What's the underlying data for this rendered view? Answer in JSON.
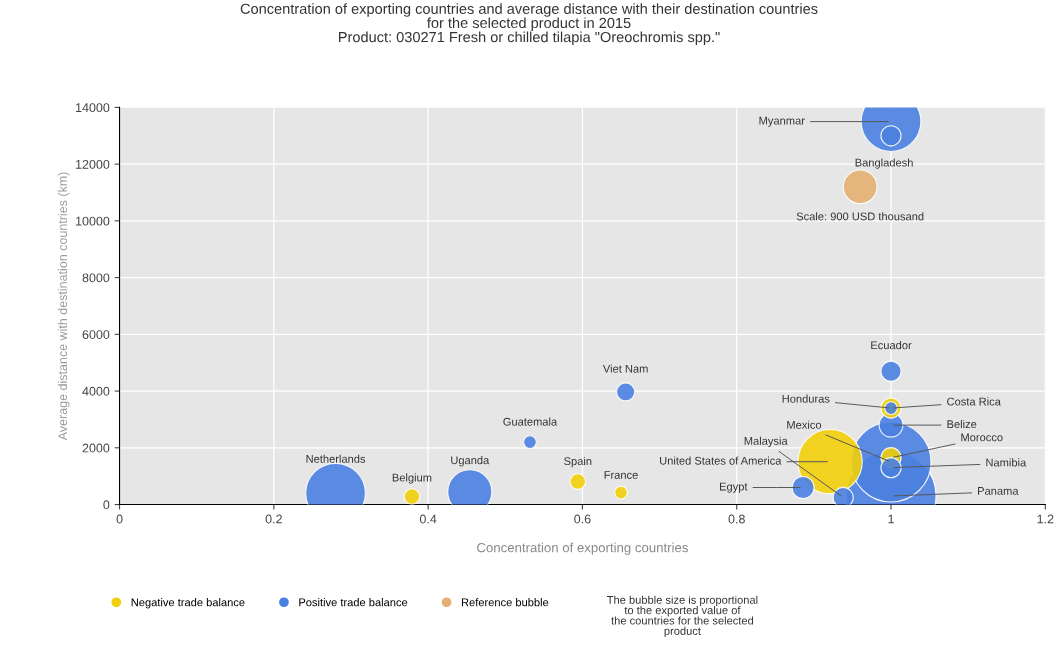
{
  "chart_data": {
    "type": "bubble",
    "title": "Concentration of exporting countries and average distance with their destination countries\nfor the selected product in 2015\nProduct: 030271 Fresh or chilled tilapia \"Oreochromis spp.\"",
    "xlabel": "Concentration of exporting countries",
    "ylabel": "Average distance with destination countries (km)",
    "xlim": [
      0,
      1.2
    ],
    "xticks": [
      0,
      0.2,
      0.4,
      0.6,
      0.8,
      1,
      1.2
    ],
    "ylim": [
      0,
      14000
    ],
    "yticks": [
      0,
      2000,
      4000,
      6000,
      8000,
      10000,
      12000,
      14000
    ],
    "grid": true,
    "legend": "bottom",
    "series": [
      {
        "name": "Negative trade balance",
        "color": "#f2cf0a",
        "x": [
          0.379,
          0.594,
          0.65,
          0.921,
          1.0,
          1.0
        ],
        "values": [
          280,
          810,
          420,
          1510,
          1650,
          3400
        ],
        "sizes": [
          0.03,
          0.03,
          0.02,
          0.51,
          0.05,
          0.05
        ]
      },
      {
        "name": "Positive trade balance",
        "color": "#4a80e0",
        "x": [
          0.28,
          0.454,
          0.532,
          0.656,
          0.886,
          0.938,
          1.0,
          1.0,
          1.0,
          1.0,
          1.0,
          1.0,
          1.0,
          1.0
        ],
        "values": [
          400,
          450,
          2200,
          3970,
          600,
          250,
          300,
          1500,
          1300,
          2800,
          4700,
          13500,
          13000,
          3400
        ],
        "sizes": [
          0.44,
          0.24,
          0.02,
          0.04,
          0.06,
          0.05,
          1,
          0.79,
          0.05,
          0.07,
          0.05,
          0.44,
          0.05,
          0.02
        ]
      },
      {
        "name": "Reference bubble",
        "color": "#e3b072",
        "x": [
          0.96
        ],
        "values": [
          11200
        ],
        "sizes": [
          0.14
        ]
      }
    ],
    "annotations": [
      {
        "text": "Myanmar",
        "x": 1.0,
        "y": 13500
      },
      {
        "text": "Bangladesh",
        "x": 1.0,
        "y": 13000
      },
      {
        "text": "Ecuador",
        "x": 1.0,
        "y": 4700
      },
      {
        "text": "Honduras",
        "x": 1.0,
        "y": 3400
      },
      {
        "text": "Costa Rica",
        "x": 1.0,
        "y": 3400
      },
      {
        "text": "Belize",
        "x": 1.0,
        "y": 2800
      },
      {
        "text": "Mexico",
        "x": 1.0,
        "y": 1500
      },
      {
        "text": "Morocco",
        "x": 1.0,
        "y": 1650
      },
      {
        "text": "Malaysia",
        "x": 0.938,
        "y": 250
      },
      {
        "text": "United States of America",
        "x": 0.921,
        "y": 1510
      },
      {
        "text": "Namibia",
        "x": 1.0,
        "y": 1300
      },
      {
        "text": "Egypt",
        "x": 0.886,
        "y": 600
      },
      {
        "text": "Panama",
        "x": 1.0,
        "y": 300
      },
      {
        "text": "Netherlands",
        "x": 0.28,
        "y": 400
      },
      {
        "text": "Belgium",
        "x": 0.379,
        "y": 280
      },
      {
        "text": "Uganda",
        "x": 0.454,
        "y": 450
      },
      {
        "text": "Guatemala",
        "x": 0.532,
        "y": 2200
      },
      {
        "text": "Viet Nam",
        "x": 0.656,
        "y": 3970
      },
      {
        "text": "Spain",
        "x": 0.594,
        "y": 810
      },
      {
        "text": "France",
        "x": 0.65,
        "y": 420
      },
      {
        "text": "Scale: 900 USD thousand",
        "x": 0.96,
        "y": 11200
      },
      "The bubble size is proportional\nto the exported value of\nthe countries for the selected\nproduct"
    ]
  }
}
